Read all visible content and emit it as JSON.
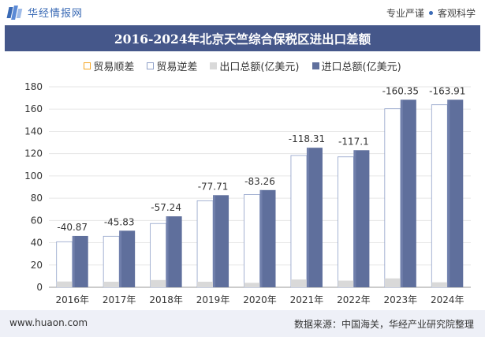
{
  "header": {
    "brand": "华经情报网",
    "tag1": "专业严谨",
    "tag2": "客观科学"
  },
  "chart_data": {
    "type": "bar",
    "title": "2016-2024年北京天竺综合保税区进出口差额",
    "categories": [
      "2016年",
      "2017年",
      "2018年",
      "2019年",
      "2020年",
      "2021年",
      "2022年",
      "2023年",
      "2024年"
    ],
    "series": [
      {
        "name": "贸易顺差",
        "values": [
          0,
          0,
          0,
          0,
          0,
          0,
          0,
          0,
          0
        ]
      },
      {
        "name": "贸易逆差",
        "values": [
          40.87,
          45.83,
          57.24,
          77.71,
          83.26,
          118.31,
          117.1,
          160.35,
          163.91
        ]
      },
      {
        "name": "出口总额(亿美元)",
        "values": [
          5.2,
          5.0,
          6.5,
          5.0,
          4.0,
          7.0,
          6.0,
          8.0,
          4.5
        ]
      },
      {
        "name": "进口总额(亿美元)",
        "values": [
          46.1,
          50.8,
          63.7,
          82.7,
          87.3,
          125.3,
          123.1,
          168.4,
          168.4
        ]
      }
    ],
    "data_labels": [
      "-40.87",
      "-45.83",
      "-57.24",
      "-77.71",
      "-83.26",
      "-118.31",
      "-117.1",
      "-160.35",
      "-163.91"
    ],
    "yticks": [
      0,
      20,
      40,
      60,
      80,
      100,
      120,
      140,
      160,
      180
    ],
    "ylim": [
      0,
      180
    ],
    "grid": true,
    "legend": "top",
    "colors": {
      "surplus": "#f5a623",
      "deficit": "#ffffff",
      "export": "#d9d9d9",
      "import": "#5f6f9c",
      "title_bg": "#45578a"
    }
  },
  "footer": {
    "website": "www.huaon.com",
    "source": "数据来源：中国海关，华经产业研究院整理"
  }
}
